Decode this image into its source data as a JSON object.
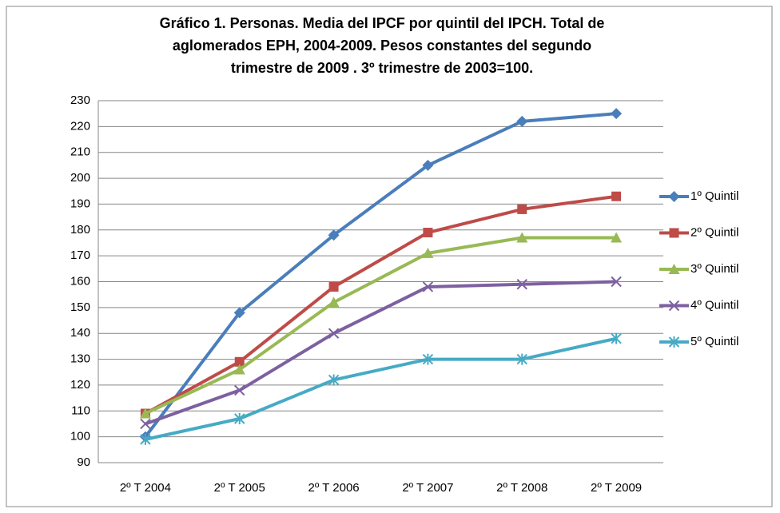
{
  "chart_data": {
    "type": "line",
    "title": [
      "Gráfico 1. Personas. Media del IPCF por quintil del IPCH. Total de",
      "aglomerados EPH, 2004-2009. Pesos constantes del segundo",
      "trimestre de 2009 . 3º trimestre de 2003=100."
    ],
    "categories": [
      "2º T 2004",
      "2º T 2005",
      "2º T 2006",
      "2º T 2007",
      "2º T 2008",
      "2º T 2009"
    ],
    "series": [
      {
        "name": "1º Quintil",
        "color": "#4a7ebb",
        "marker": "diamond",
        "values": [
          100,
          148,
          178,
          205,
          222,
          225
        ]
      },
      {
        "name": "2º Quintil",
        "color": "#be4b48",
        "marker": "square",
        "values": [
          109,
          129,
          158,
          179,
          188,
          193
        ]
      },
      {
        "name": "3º Quintil",
        "color": "#98b954",
        "marker": "triangle",
        "values": [
          109,
          126,
          152,
          171,
          177,
          177
        ]
      },
      {
        "name": "4º Quintil",
        "color": "#7d60a0",
        "marker": "x",
        "values": [
          105,
          118,
          140,
          158,
          159,
          160
        ]
      },
      {
        "name": "5º Quintil",
        "color": "#46aac5",
        "marker": "star",
        "values": [
          99,
          107,
          122,
          130,
          130,
          138
        ]
      }
    ],
    "ylim": [
      90,
      230
    ],
    "yticks": [
      90,
      100,
      110,
      120,
      130,
      140,
      150,
      160,
      170,
      180,
      190,
      200,
      210,
      220,
      230
    ],
    "grid": true,
    "legend": "right"
  }
}
